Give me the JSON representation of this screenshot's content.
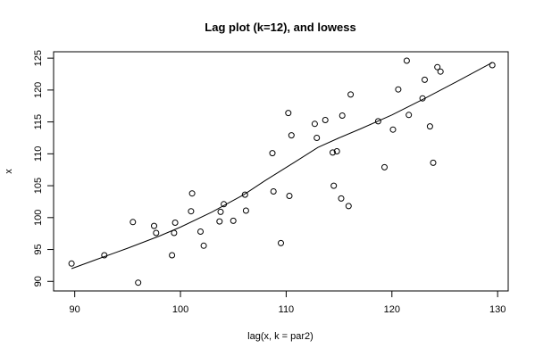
{
  "chart_data": {
    "type": "scatter",
    "title": "Lag plot (k=12), and lowess",
    "xlabel": "lag(x, k = par2)",
    "ylabel": "x",
    "xlim": [
      88,
      131
    ],
    "ylim": [
      88.5,
      126
    ],
    "xticks": [
      90,
      100,
      110,
      120,
      130
    ],
    "yticks": [
      90,
      95,
      100,
      105,
      110,
      115,
      120,
      125
    ],
    "grid": false,
    "legend": "none",
    "series": [
      {
        "kind": "points",
        "marker": "open-circle",
        "x": [
          89.7,
          92.8,
          95.5,
          96,
          97.5,
          97.7,
          99.2,
          99.4,
          99.5,
          101,
          101.1,
          101.9,
          102.2,
          103.7,
          103.8,
          104.1,
          105,
          106.1,
          106.2,
          108.7,
          108.8,
          109.5,
          110.2,
          110.3,
          110.5,
          112.7,
          112.9,
          113.7,
          114.4,
          114.5,
          114.8,
          115.2,
          115.3,
          115.9,
          116.1,
          118.7,
          119.3,
          120.1,
          120.6,
          121.4,
          121.6,
          122.9,
          123.1,
          123.6,
          123.9,
          124.3,
          124.6,
          129.5
        ],
        "y": [
          92.8,
          94.1,
          99.3,
          89.8,
          98.7,
          97.6,
          94.1,
          97.6,
          99.2,
          101,
          103.8,
          97.8,
          95.6,
          99.4,
          100.9,
          102.1,
          99.5,
          103.6,
          101.1,
          110.1,
          104.1,
          96,
          116.4,
          103.4,
          112.9,
          114.7,
          112.5,
          115.3,
          110.2,
          105,
          110.4,
          103,
          116,
          101.8,
          119.3,
          115.1,
          107.9,
          113.8,
          120.1,
          124.6,
          116.1,
          118.7,
          121.6,
          114.3,
          108.6,
          123.6,
          122.9,
          123.9
        ]
      },
      {
        "kind": "line",
        "x": [
          89.7,
          92,
          95,
          98,
          100,
          103,
          106,
          108,
          111,
          113,
          115,
          117,
          120,
          123,
          126,
          129.5
        ],
        "y": [
          92.0,
          93.4,
          95.2,
          97.1,
          98.5,
          100.9,
          103.6,
          105.8,
          108.9,
          111.0,
          112.5,
          113.9,
          116.1,
          118.6,
          121.2,
          124.3
        ]
      }
    ]
  }
}
